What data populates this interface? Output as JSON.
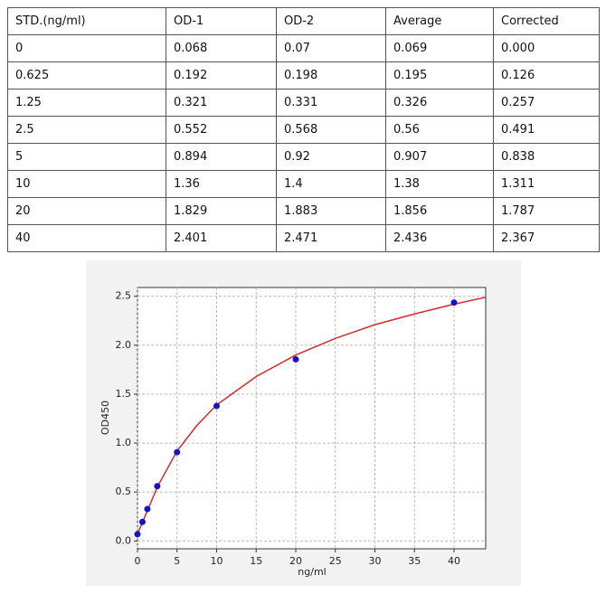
{
  "table": {
    "header": [
      "STD.(ng/ml)",
      "OD-1",
      "OD-2",
      "Average",
      "Corrected"
    ],
    "rows": [
      [
        "0",
        "0.068",
        "0.07",
        "0.069",
        "0.000"
      ],
      [
        "0.625",
        "0.192",
        "0.198",
        "0.195",
        "0.126"
      ],
      [
        "1.25",
        "0.321",
        "0.331",
        "0.326",
        "0.257"
      ],
      [
        "2.5",
        "0.552",
        "0.568",
        "0.56",
        "0.491"
      ],
      [
        "5",
        "0.894",
        "0.92",
        "0.907",
        "0.838"
      ],
      [
        "10",
        "1.36",
        "1.4",
        "1.38",
        "1.311"
      ],
      [
        "20",
        "1.829",
        "1.883",
        "1.856",
        "1.787"
      ],
      [
        "40",
        "2.401",
        "2.471",
        "2.436",
        "2.367"
      ]
    ]
  },
  "chart_data": {
    "type": "scatter",
    "x_label": "ng/ml",
    "y_label": "OD450",
    "xlim": [
      0,
      44
    ],
    "ylim": [
      -0.08,
      2.59
    ],
    "xticks": [
      0,
      5,
      10,
      15,
      20,
      25,
      30,
      35,
      40
    ],
    "yticks": [
      {
        "value": 0,
        "label": "0.0"
      },
      0.5,
      {
        "value": 1,
        "label": "1.0"
      },
      1.5,
      {
        "value": 2,
        "label": "2.0"
      },
      2.5
    ],
    "grid": true,
    "series": [
      {
        "type": "scatter",
        "color": "#1a10c8",
        "x": [
          0,
          0.625,
          1.25,
          2.5,
          5,
          10,
          20,
          40
        ],
        "values": [
          0.069,
          0.195,
          0.326,
          0.56,
          0.907,
          1.38,
          1.856,
          2.436
        ]
      },
      {
        "type": "line",
        "color": "#d42a2a",
        "x": [
          0,
          1,
          2.5,
          5,
          7.5,
          10,
          15,
          20,
          25,
          30,
          35,
          40,
          44
        ],
        "values": [
          0.07,
          0.26,
          0.55,
          0.92,
          1.18,
          1.39,
          1.68,
          1.9,
          2.07,
          2.21,
          2.32,
          2.42,
          2.49
        ]
      }
    ]
  }
}
